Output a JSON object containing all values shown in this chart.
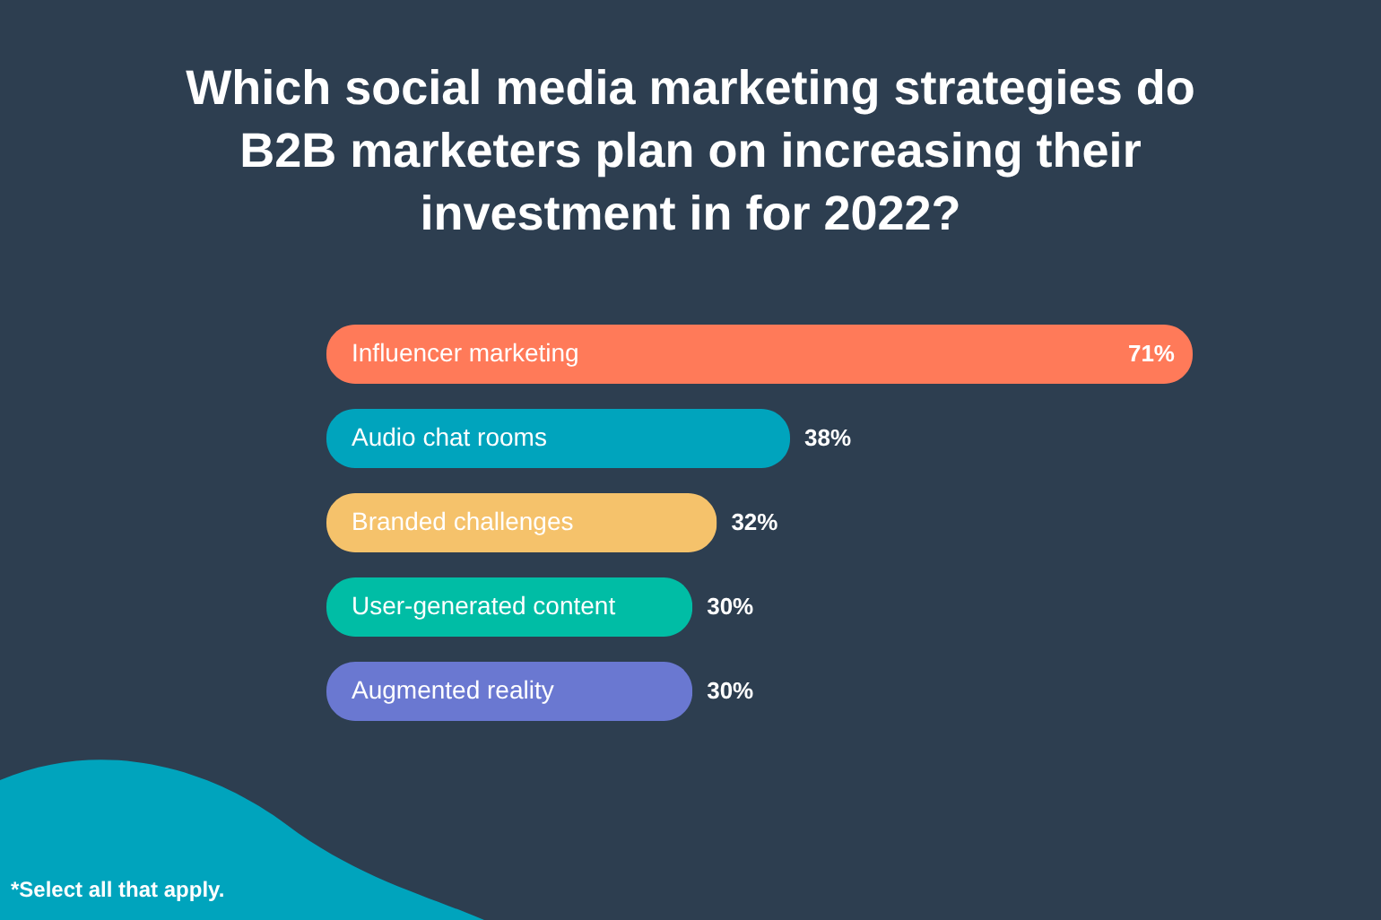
{
  "chart_data": {
    "type": "bar",
    "orientation": "horizontal",
    "title": "Which social media marketing strategies do B2B marketers plan on increasing their investment in for 2022?",
    "categories": [
      "Influencer marketing",
      "Audio chat rooms",
      "Branded challenges",
      "User-generated content",
      "Augmented reality"
    ],
    "values": [
      71,
      38,
      32,
      30,
      30
    ],
    "value_labels": [
      "71%",
      "38%",
      "32%",
      "30%",
      "30%"
    ],
    "colors": [
      "#ff7a59",
      "#00a4bd",
      "#f5c26b",
      "#00bda5",
      "#6a78d1"
    ],
    "annotations": [
      "*Select all that apply."
    ]
  }
}
